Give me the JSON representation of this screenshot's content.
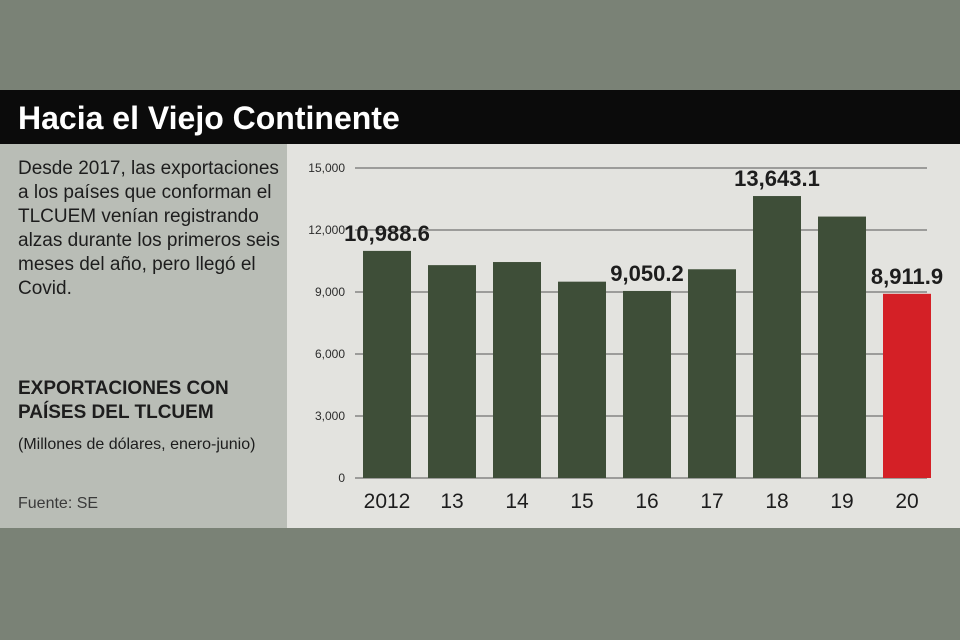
{
  "header": {
    "title": "Hacia el Viejo Continente"
  },
  "sidebar": {
    "description": "Desde 2017, las exportaciones a los países que conforman el TLCUEM venían registrando alzas durante los primeros seis meses del año, pero llegó el Covid.",
    "chart_title": "EXPORTACIONES CON PAÍSES DEL TLCUEM",
    "units": "(Millones de dólares, enero-junio)",
    "source": "Fuente: SE"
  },
  "chart_data": {
    "type": "bar",
    "title": "EXPORTACIONES CON PAÍSES DEL TLCUEM",
    "subtitle": "(Millones de dólares, enero-junio)",
    "categories": [
      "2012",
      "13",
      "14",
      "15",
      "16",
      "17",
      "18",
      "19",
      "20"
    ],
    "values": [
      10988.6,
      10300,
      10450,
      9500,
      9050.2,
      10100,
      13643.1,
      12650,
      8911.9
    ],
    "value_labels": [
      "10,988.6",
      "",
      "",
      "",
      "9,050.2",
      "",
      "13,643.1",
      "",
      "8,911.9"
    ],
    "ylim": [
      0,
      15000
    ],
    "yticks": [
      0,
      3000,
      6000,
      9000,
      12000,
      15000
    ],
    "ytick_labels": [
      "0",
      "3,000",
      "6,000",
      "9,000",
      "12,000",
      "15,000"
    ],
    "grid": true,
    "colors": {
      "bar": "#3e4e38",
      "highlight": "#d42026",
      "grid": "#555555"
    },
    "highlight_index": 8
  }
}
